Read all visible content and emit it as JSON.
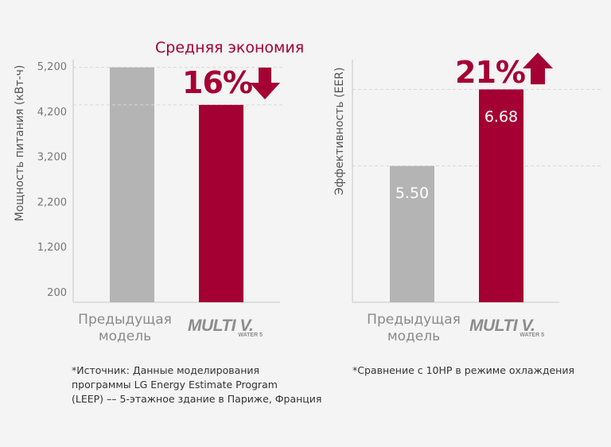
{
  "colors": {
    "accent": "#a50034",
    "previous": "#b4b4b4",
    "text": "#8a8a8a",
    "background": "#f4f4f4"
  },
  "headline": "Средняя экономия",
  "logo_text": {
    "main": "MULTI V.",
    "sub": "WATER 5"
  },
  "chart_data": [
    {
      "type": "bar",
      "ylabel": "Мощность питания (кВт-ч)",
      "yticks": [
        "5,200",
        "4,200",
        "3,200",
        "2,200",
        "1,200",
        "200"
      ],
      "ylim": [
        200,
        5200
      ],
      "categories": [
        "Предыдущая модель",
        "MULTI V WATER 5"
      ],
      "values": [
        5170,
        4340
      ],
      "bar_colors": [
        "#b4b4b4",
        "#a50034"
      ],
      "annotation": {
        "text": "16%",
        "arrow": "down"
      },
      "grid": "dashed lines at bar tops",
      "footnote": [
        "*Источник: Данные моделирования",
        "программы LG Energy Estimate Program",
        "(LEEP) –– 5-этажное здание в Париже, Франция"
      ]
    },
    {
      "type": "bar",
      "ylabel": "Эффективность (EER)",
      "ylim": [
        3.4,
        7.2
      ],
      "categories": [
        "Предыдущая модель",
        "MULTI V WATER 5"
      ],
      "values": [
        5.5,
        6.68
      ],
      "data_labels": [
        "5.50",
        "6.68"
      ],
      "bar_colors": [
        "#b4b4b4",
        "#a50034"
      ],
      "annotation": {
        "text": "21%",
        "arrow": "up"
      },
      "grid": "dashed lines at bar tops",
      "footnote": [
        "*Сравнение с 10HP в режиме охлаждения"
      ]
    }
  ],
  "category_label_lines": [
    "Предыдущая",
    "модель"
  ]
}
